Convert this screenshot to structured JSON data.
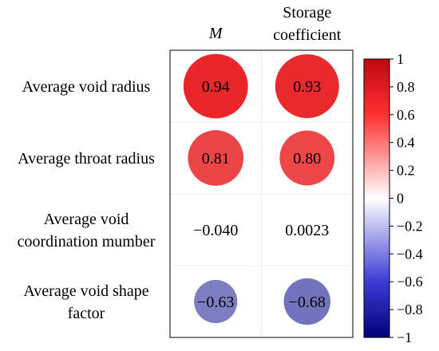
{
  "chart_data": {
    "type": "heatmap",
    "style": "correlation-circles",
    "columns": [
      "M",
      "Storage coefficient"
    ],
    "rows": [
      "Average void radius",
      "Average throat radius",
      "Average void coordination mumber",
      "Average void shape factor"
    ],
    "values": [
      [
        0.94,
        0.93
      ],
      [
        0.81,
        0.8
      ],
      [
        -0.04,
        0.0023
      ],
      [
        -0.63,
        -0.68
      ]
    ],
    "cell_labels": [
      [
        "0.94",
        "0.93"
      ],
      [
        "0.81",
        "0.80"
      ],
      [
        "−0.040",
        "0.0023"
      ],
      [
        "−0.63",
        "−0.68"
      ]
    ],
    "colorbar": {
      "range": [
        -1,
        1
      ],
      "ticks": [
        "1",
        "0.8",
        "0.6",
        "0.4",
        "0.2",
        "0",
        "−0.2",
        "−0.4",
        "−0.6",
        "−0.8",
        "−1"
      ],
      "colors": {
        "high": "#e8191c",
        "mid": "#ffffff",
        "low": "#0c0c8c"
      }
    },
    "grid": true,
    "legend_position": "right"
  }
}
